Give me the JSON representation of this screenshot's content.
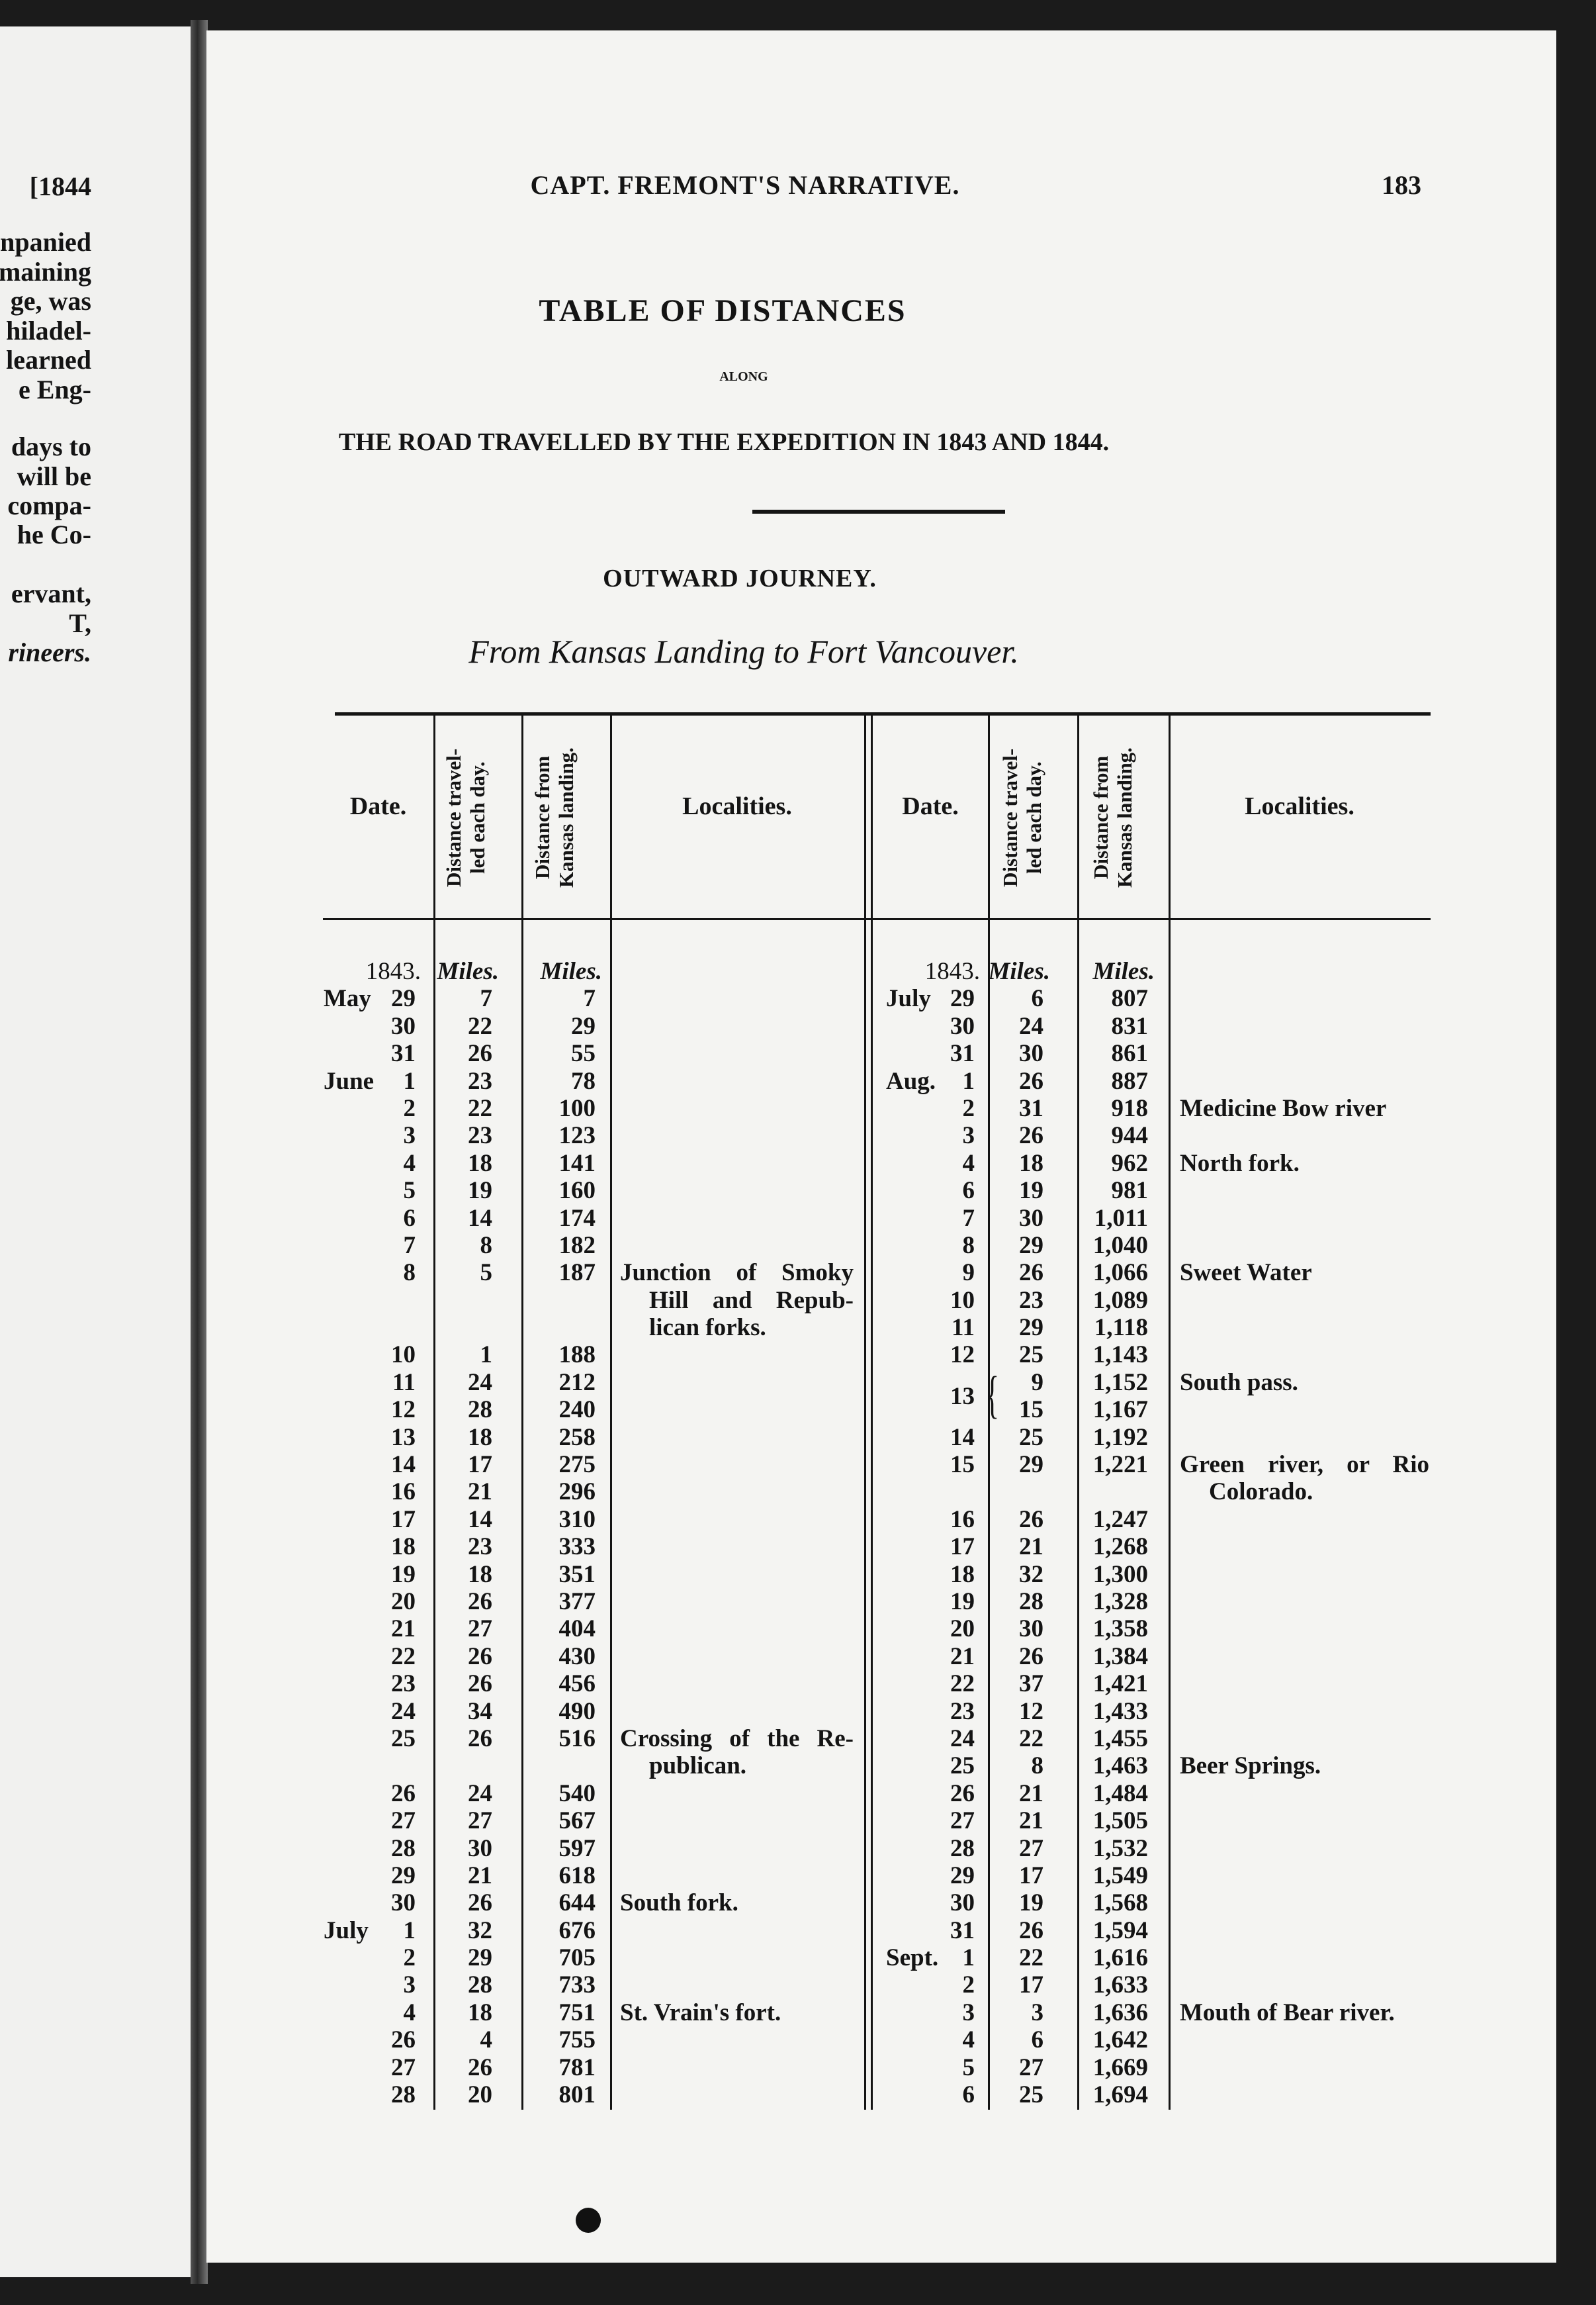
{
  "previous_page": {
    "running_head": "[1844",
    "lines": [
      "npanied",
      "maining",
      "ge, was",
      "hiladel-",
      "learned",
      "e Eng-",
      "days to",
      "will be",
      "compa-",
      "he Co-",
      "ervant,",
      "T,",
      "rineers."
    ]
  },
  "header": {
    "running_title": "CAPT. FREMONT'S NARRATIVE.",
    "page_number": "183"
  },
  "title": {
    "main": "TABLE OF DISTANCES",
    "along": "ALONG",
    "subtitle": "THE ROAD TRAVELLED BY THE EXPEDITION IN 1843 AND 1844.",
    "section": "OUTWARD JOURNEY.",
    "route": "From Kansas Landing to Fort Vancouver."
  },
  "table": {
    "columns": {
      "date": "Date.",
      "daily": [
        "Distance travel-",
        "led each day."
      ],
      "total": [
        "Distance from",
        "Kansas landing."
      ],
      "localities": "Localities."
    },
    "left": {
      "year": "1843.",
      "unit_daily": "Miles.",
      "unit_total": "Miles.",
      "rows": [
        {
          "month": "May",
          "day": "29",
          "daily": "7",
          "total": "7"
        },
        {
          "day": "30",
          "daily": "22",
          "total": "29"
        },
        {
          "day": "31",
          "daily": "26",
          "total": "55"
        },
        {
          "month": "June",
          "day": "1",
          "daily": "23",
          "total": "78"
        },
        {
          "day": "2",
          "daily": "22",
          "total": "100"
        },
        {
          "day": "3",
          "daily": "23",
          "total": "123"
        },
        {
          "day": "4",
          "daily": "18",
          "total": "141"
        },
        {
          "day": "5",
          "daily": "19",
          "total": "160"
        },
        {
          "day": "6",
          "daily": "14",
          "total": "174"
        },
        {
          "day": "7",
          "daily": "8",
          "total": "182"
        },
        {
          "day": "8",
          "daily": "5",
          "total": "187",
          "locality": [
            "Junction of Smoky",
            "Hill and Repub-",
            "lican forks."
          ]
        },
        {
          "day": "10",
          "daily": "1",
          "total": "188"
        },
        {
          "day": "11",
          "daily": "24",
          "total": "212"
        },
        {
          "day": "12",
          "daily": "28",
          "total": "240"
        },
        {
          "day": "13",
          "daily": "18",
          "total": "258"
        },
        {
          "day": "14",
          "daily": "17",
          "total": "275"
        },
        {
          "day": "16",
          "daily": "21",
          "total": "296"
        },
        {
          "day": "17",
          "daily": "14",
          "total": "310"
        },
        {
          "day": "18",
          "daily": "23",
          "total": "333"
        },
        {
          "day": "19",
          "daily": "18",
          "total": "351"
        },
        {
          "day": "20",
          "daily": "26",
          "total": "377"
        },
        {
          "day": "21",
          "daily": "27",
          "total": "404"
        },
        {
          "day": "22",
          "daily": "26",
          "total": "430"
        },
        {
          "day": "23",
          "daily": "26",
          "total": "456"
        },
        {
          "day": "24",
          "daily": "34",
          "total": "490"
        },
        {
          "day": "25",
          "daily": "26",
          "total": "516",
          "locality": [
            "Crossing of the Re-",
            "publican."
          ]
        },
        {
          "day": "26",
          "daily": "24",
          "total": "540"
        },
        {
          "day": "27",
          "daily": "27",
          "total": "567"
        },
        {
          "day": "28",
          "daily": "30",
          "total": "597"
        },
        {
          "day": "29",
          "daily": "21",
          "total": "618"
        },
        {
          "day": "30",
          "daily": "26",
          "total": "644",
          "locality": [
            "South fork."
          ]
        },
        {
          "month": "July",
          "day": "1",
          "daily": "32",
          "total": "676"
        },
        {
          "day": "2",
          "daily": "29",
          "total": "705"
        },
        {
          "day": "3",
          "daily": "28",
          "total": "733"
        },
        {
          "day": "4",
          "daily": "18",
          "total": "751",
          "locality": [
            "St. Vrain's fort."
          ]
        },
        {
          "day": "26",
          "daily": "4",
          "total": "755"
        },
        {
          "day": "27",
          "daily": "26",
          "total": "781"
        },
        {
          "day": "28",
          "daily": "20",
          "total": "801"
        }
      ]
    },
    "right": {
      "year": "1843.",
      "unit_daily": "Miles.",
      "unit_total": "Miles.",
      "rows": [
        {
          "month": "July",
          "day": "29",
          "daily": "6",
          "total": "807"
        },
        {
          "day": "30",
          "daily": "24",
          "total": "831"
        },
        {
          "day": "31",
          "daily": "30",
          "total": "861"
        },
        {
          "month": "Aug.",
          "day": "1",
          "daily": "26",
          "total": "887"
        },
        {
          "day": "2",
          "daily": "31",
          "total": "918",
          "locality": [
            "Medicine Bow river"
          ]
        },
        {
          "day": "3",
          "daily": "26",
          "total": "944"
        },
        {
          "day": "4",
          "daily": "18",
          "total": "962",
          "locality": [
            "North fork."
          ]
        },
        {
          "day": "6",
          "daily": "19",
          "total": "981"
        },
        {
          "day": "7",
          "daily": "30",
          "total": "1,011"
        },
        {
          "day": "8",
          "daily": "29",
          "total": "1,040"
        },
        {
          "day": "9",
          "daily": "26",
          "total": "1,066",
          "locality": [
            "Sweet Water"
          ]
        },
        {
          "day": "10",
          "daily": "23",
          "total": "1,089"
        },
        {
          "day": "11",
          "daily": "29",
          "total": "1,118"
        },
        {
          "day": "12",
          "daily": "25",
          "total": "1,143"
        },
        {
          "day": "13",
          "sub": [
            {
              "daily": "9",
              "total": "1,152",
              "locality": [
                "South pass."
              ]
            },
            {
              "daily": "15",
              "total": "1,167"
            }
          ]
        },
        {
          "day": "14",
          "daily": "25",
          "total": "1,192"
        },
        {
          "day": "15",
          "daily": "29",
          "total": "1,221",
          "locality": [
            "Green river, or Rio",
            "Colorado."
          ]
        },
        {
          "day": "16",
          "daily": "26",
          "total": "1,247"
        },
        {
          "day": "17",
          "daily": "21",
          "total": "1,268"
        },
        {
          "day": "18",
          "daily": "32",
          "total": "1,300"
        },
        {
          "day": "19",
          "daily": "28",
          "total": "1,328"
        },
        {
          "day": "20",
          "daily": "30",
          "total": "1,358"
        },
        {
          "day": "21",
          "daily": "26",
          "total": "1,384"
        },
        {
          "day": "22",
          "daily": "37",
          "total": "1,421"
        },
        {
          "day": "23",
          "daily": "12",
          "total": "1,433"
        },
        {
          "day": "24",
          "daily": "22",
          "total": "1,455"
        },
        {
          "day": "25",
          "daily": "8",
          "total": "1,463",
          "locality": [
            "Beer Springs."
          ]
        },
        {
          "day": "26",
          "daily": "21",
          "total": "1,484"
        },
        {
          "day": "27",
          "daily": "21",
          "total": "1,505"
        },
        {
          "day": "28",
          "daily": "27",
          "total": "1,532"
        },
        {
          "day": "29",
          "daily": "17",
          "total": "1,549"
        },
        {
          "day": "30",
          "daily": "19",
          "total": "1,568"
        },
        {
          "day": "31",
          "daily": "26",
          "total": "1,594"
        },
        {
          "month": "Sept.",
          "day": "1",
          "daily": "22",
          "total": "1,616"
        },
        {
          "day": "2",
          "daily": "17",
          "total": "1,633"
        },
        {
          "day": "3",
          "daily": "3",
          "total": "1,636",
          "locality": [
            "Mouth of Bear river."
          ]
        },
        {
          "day": "4",
          "daily": "6",
          "total": "1,642"
        },
        {
          "day": "5",
          "daily": "27",
          "total": "1,669"
        },
        {
          "day": "6",
          "daily": "25",
          "total": "1,694"
        }
      ]
    }
  }
}
